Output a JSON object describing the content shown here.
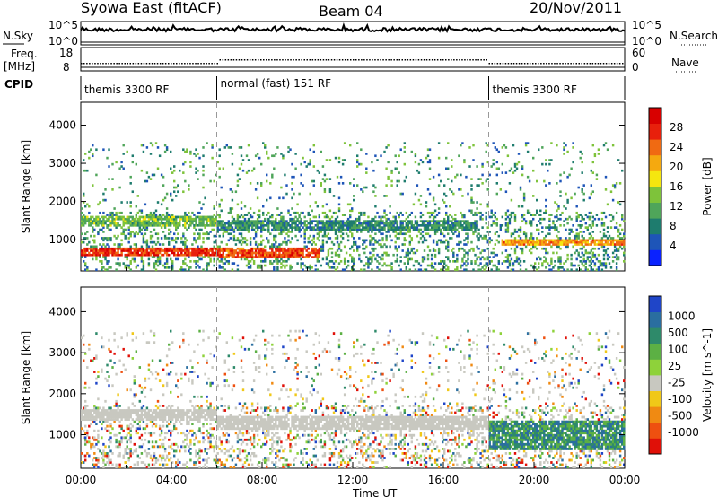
{
  "header": {
    "station": "Syowa East (fitACF)",
    "beam": "Beam 04",
    "date": "20/Nov/2011"
  },
  "top_panels": {
    "nsky_label": "N.Sky",
    "nsky_ticks": [
      "10^5",
      "10^0"
    ],
    "nsearch_label": "N.Search",
    "nsearch_ticks": [
      "10^5",
      "10^0"
    ],
    "freq_label_1": "Freq.",
    "freq_label_2": "[MHz]",
    "freq_ticks": [
      "18",
      "8"
    ],
    "nave_label": "Nave",
    "nave_ticks": [
      "60",
      "0"
    ],
    "cpid_label": "CPID"
  },
  "cpid_segments": [
    {
      "label": "themis 3300 RF",
      "start": 0,
      "end": 6
    },
    {
      "label": "normal (fast) 151 RF",
      "start": 6,
      "end": 18
    },
    {
      "label": "themis 3300 RF",
      "start": 18,
      "end": 24
    }
  ],
  "chart_data": [
    {
      "type": "heatmap",
      "panel": "power",
      "xlabel": "",
      "ylabel": "Slant Range [km]",
      "xlim": [
        0,
        24
      ],
      "ylim": [
        180,
        4600
      ],
      "y_ticks": [
        1000,
        2000,
        3000,
        4000
      ],
      "colorbar": {
        "label": "Power [dB]",
        "range": [
          0,
          32
        ],
        "ticks": [
          4,
          8,
          12,
          16,
          20,
          24,
          28
        ],
        "colors": [
          "#0a22ff",
          "#1e55b8",
          "#1e7c6e",
          "#4fa55a",
          "#7ec33a",
          "#f5e60f",
          "#f5a90f",
          "#f06a12",
          "#e8200c",
          "#d80000"
        ]
      },
      "bands": [
        {
          "t0": 0.0,
          "t1": 6.0,
          "r0": 550,
          "r1": 760,
          "value": 27
        },
        {
          "t0": 6.0,
          "t1": 10.5,
          "r0": 500,
          "r1": 750,
          "value": 26
        },
        {
          "t0": 0.0,
          "t1": 6.0,
          "r0": 1300,
          "r1": 1600,
          "value": 13
        },
        {
          "t0": 6.0,
          "t1": 17.5,
          "r0": 1200,
          "r1": 1500,
          "value": 9
        },
        {
          "t0": 18.5,
          "t1": 24.0,
          "r0": 800,
          "r1": 1000,
          "value": 22
        }
      ]
    },
    {
      "type": "heatmap",
      "panel": "velocity",
      "xlabel": "Time UT",
      "ylabel": "Slant Range [km]",
      "xlim": [
        0,
        24
      ],
      "ylim": [
        180,
        4600
      ],
      "y_ticks": [
        1000,
        2000,
        3000,
        4000
      ],
      "x_ticks": [
        "00:00",
        "04:00",
        "08:00",
        "12:00",
        "16:00",
        "20:00",
        "00:00"
      ],
      "colorbar": {
        "label": "Velocity [m s^-1]",
        "ticks": [
          "1000",
          "500",
          "100",
          "25",
          "-25",
          "-100",
          "-500",
          "-1000"
        ],
        "colors": [
          "#1f45c8",
          "#2a6ea0",
          "#2e8a6a",
          "#5cb044",
          "#8ed23a",
          "#c8c8c0",
          "#f0c818",
          "#f08a12",
          "#ee5010",
          "#e01008"
        ]
      },
      "bands": [
        {
          "t0": 0.0,
          "t1": 6.0,
          "r0": 1300,
          "r1": 1600,
          "value": 0
        },
        {
          "t0": 6.0,
          "t1": 18.0,
          "r0": 1100,
          "r1": 1450,
          "value": 0
        },
        {
          "t0": 18.0,
          "t1": 24.0,
          "r0": 600,
          "r1": 1300,
          "value": 300
        }
      ]
    }
  ]
}
